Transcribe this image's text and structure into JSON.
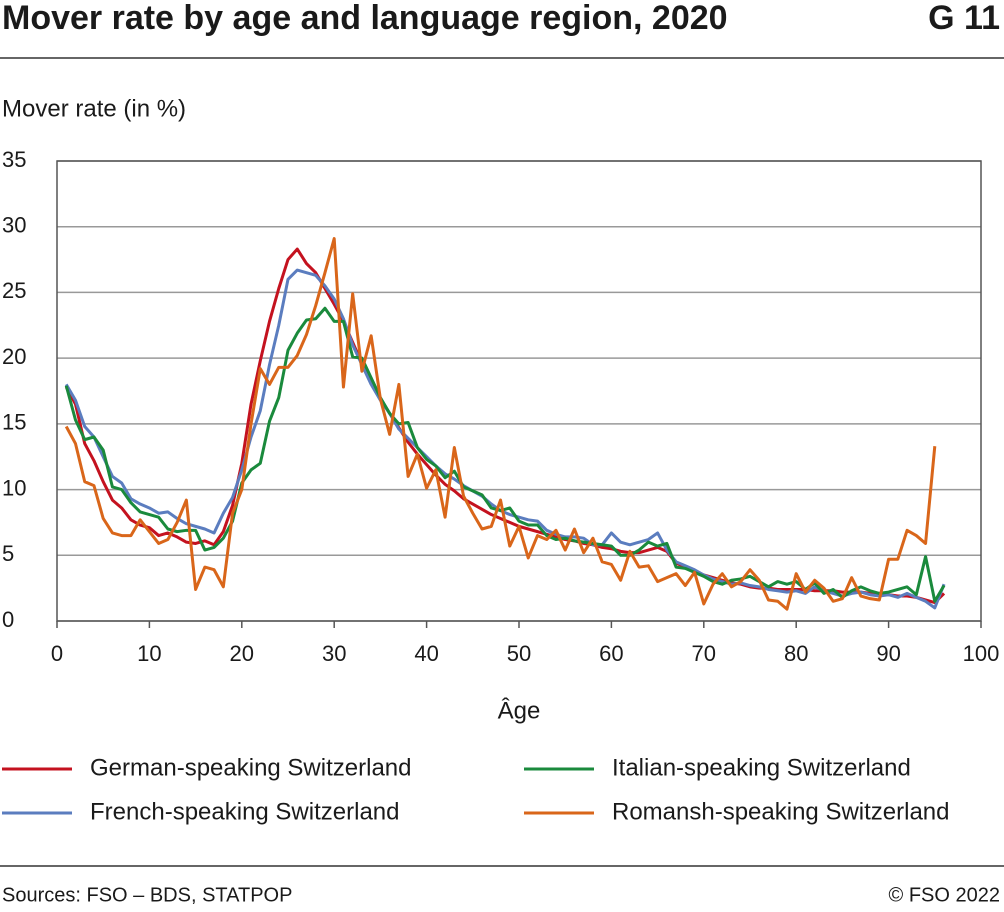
{
  "chart_data": {
    "type": "line",
    "title": "Mover rate by age and language region, 2020",
    "chart_id": "G 11",
    "y_label": "Mover rate (in %)",
    "x_label": "Âge",
    "source": "Sources: FSO – BDS, STATPOP",
    "copyright": "© FSO 2022",
    "x": [
      1,
      2,
      3,
      4,
      5,
      6,
      7,
      8,
      9,
      10,
      11,
      12,
      13,
      14,
      15,
      16,
      17,
      18,
      19,
      20,
      21,
      22,
      23,
      24,
      25,
      26,
      27,
      28,
      29,
      30,
      31,
      32,
      33,
      34,
      35,
      36,
      37,
      38,
      39,
      40,
      41,
      42,
      43,
      44,
      45,
      46,
      47,
      48,
      49,
      50,
      51,
      52,
      53,
      54,
      55,
      56,
      57,
      58,
      59,
      60,
      61,
      62,
      63,
      64,
      65,
      66,
      67,
      68,
      69,
      70,
      71,
      72,
      73,
      74,
      75,
      76,
      77,
      78,
      79,
      80,
      81,
      82,
      83,
      84,
      85,
      86,
      87,
      88,
      89,
      90,
      91,
      92,
      93,
      94,
      95,
      96
    ],
    "series": [
      {
        "name": "German-speaking Switzerland",
        "color": "#c4121f",
        "values": [
          17.8,
          16.5,
          13.5,
          12.2,
          10.6,
          9.2,
          8.6,
          7.7,
          7.3,
          7.1,
          6.5,
          6.7,
          6.4,
          6.0,
          5.9,
          6.1,
          5.8,
          6.8,
          8.8,
          12.0,
          16.5,
          19.8,
          22.8,
          25.3,
          27.5,
          28.3,
          27.2,
          26.5,
          25.3,
          24.1,
          22.8,
          21.2,
          19.6,
          18.2,
          16.9,
          15.8,
          14.7,
          13.6,
          12.7,
          11.9,
          11.1,
          10.4,
          9.9,
          9.3,
          8.9,
          8.5,
          8.1,
          7.8,
          7.5,
          7.2,
          7.0,
          6.8,
          6.6,
          6.4,
          6.2,
          6.1,
          5.9,
          5.8,
          5.6,
          5.5,
          5.3,
          5.2,
          5.2,
          5.4,
          5.6,
          5.3,
          4.4,
          4.1,
          3.8,
          3.5,
          3.3,
          3.1,
          2.9,
          2.8,
          2.6,
          2.5,
          2.5,
          2.4,
          2.4,
          2.4,
          2.4,
          2.3,
          2.3,
          2.3,
          2.2,
          2.2,
          2.2,
          2.1,
          2.1,
          2.0,
          1.9,
          1.9,
          1.8,
          1.6,
          1.4,
          2.1
        ]
      },
      {
        "name": "French-speaking Switzerland",
        "color": "#5b7dbf",
        "values": [
          18.0,
          16.8,
          14.8,
          14.0,
          12.5,
          11.0,
          10.5,
          9.3,
          8.9,
          8.6,
          8.2,
          8.3,
          7.8,
          7.4,
          7.2,
          7.0,
          6.7,
          8.2,
          9.4,
          11.5,
          14.0,
          16.0,
          19.5,
          22.5,
          26.0,
          26.7,
          26.5,
          26.3,
          25.5,
          24.5,
          23.0,
          21.0,
          19.5,
          18.0,
          16.8,
          15.8,
          14.6,
          13.9,
          13.2,
          12.5,
          11.8,
          11.2,
          10.8,
          10.3,
          9.9,
          9.5,
          8.9,
          8.4,
          8.1,
          7.9,
          7.7,
          7.6,
          6.9,
          6.6,
          6.4,
          6.4,
          6.3,
          5.8,
          5.8,
          6.7,
          6.0,
          5.8,
          6.0,
          6.2,
          6.7,
          5.4,
          4.5,
          4.2,
          3.9,
          3.5,
          3.2,
          3.0,
          2.8,
          2.9,
          2.7,
          2.6,
          2.4,
          2.3,
          2.2,
          2.3,
          2.1,
          2.6,
          2.3,
          2.1,
          1.9,
          2.1,
          2.2,
          2.0,
          1.9,
          2.0,
          1.8,
          2.1,
          1.8,
          1.5,
          1.0,
          2.8
        ]
      },
      {
        "name": "Italian-speaking Switzerland",
        "color": "#1a8a3c",
        "values": [
          17.9,
          15.3,
          13.8,
          14.0,
          13.0,
          10.2,
          10.0,
          9.0,
          8.3,
          8.1,
          7.9,
          7.0,
          6.8,
          6.9,
          6.9,
          5.4,
          5.6,
          6.3,
          7.6,
          10.5,
          11.5,
          12.0,
          15.2,
          17.0,
          20.6,
          21.9,
          22.9,
          23.0,
          23.8,
          22.8,
          22.8,
          20.1,
          20.0,
          18.5,
          17.0,
          15.8,
          15.0,
          15.1,
          13.2,
          12.3,
          11.8,
          10.9,
          11.4,
          10.2,
          9.9,
          9.6,
          8.6,
          8.4,
          8.6,
          7.6,
          7.3,
          7.3,
          6.5,
          6.2,
          6.3,
          6.1,
          6.0,
          5.9,
          5.8,
          5.7,
          5.0,
          5.0,
          5.4,
          6.0,
          5.7,
          5.9,
          4.1,
          4.0,
          3.7,
          3.4,
          3.0,
          2.8,
          3.1,
          3.2,
          3.4,
          3.0,
          2.6,
          3.0,
          2.8,
          3.0,
          2.4,
          2.9,
          2.1,
          2.4,
          1.8,
          2.3,
          2.6,
          2.3,
          2.1,
          2.2,
          2.4,
          2.6,
          2.0,
          4.9,
          1.5,
          2.7
        ]
      },
      {
        "name": "Romansh-speaking Switzerland",
        "color": "#d9661a",
        "values": [
          14.8,
          13.5,
          10.6,
          10.3,
          7.8,
          6.7,
          6.5,
          6.5,
          7.7,
          6.8,
          5.9,
          6.2,
          7.5,
          9.2,
          2.4,
          4.1,
          3.9,
          2.6,
          8.2,
          10.0,
          15.0,
          19.2,
          18.0,
          19.3,
          19.3,
          20.2,
          21.8,
          24.0,
          26.5,
          29.1,
          17.8,
          24.9,
          19.0,
          21.7,
          16.9,
          14.2,
          18.0,
          11.0,
          12.7,
          10.1,
          11.5,
          7.9,
          13.2,
          9.5,
          8.2,
          7.0,
          7.2,
          9.2,
          5.7,
          7.2,
          4.8,
          6.5,
          6.2,
          6.9,
          5.4,
          7.0,
          5.2,
          6.3,
          4.5,
          4.3,
          3.1,
          5.3,
          4.1,
          4.2,
          3.0,
          3.3,
          3.6,
          2.7,
          3.7,
          1.3,
          2.8,
          3.6,
          2.6,
          3.0,
          3.9,
          3.1,
          1.6,
          1.5,
          0.9,
          3.6,
          2.2,
          3.1,
          2.5,
          1.5,
          1.7,
          3.3,
          1.9,
          1.7,
          1.6,
          4.7,
          4.7,
          6.9,
          6.5,
          5.9,
          13.3,
          null
        ]
      }
    ],
    "xlim": [
      0,
      100
    ],
    "xticks": [
      0,
      10,
      20,
      30,
      40,
      50,
      60,
      70,
      80,
      90,
      100
    ],
    "ylim": [
      0,
      35
    ],
    "yticks": [
      0,
      5,
      10,
      15,
      20,
      25,
      30,
      35
    ],
    "grid": true
  }
}
